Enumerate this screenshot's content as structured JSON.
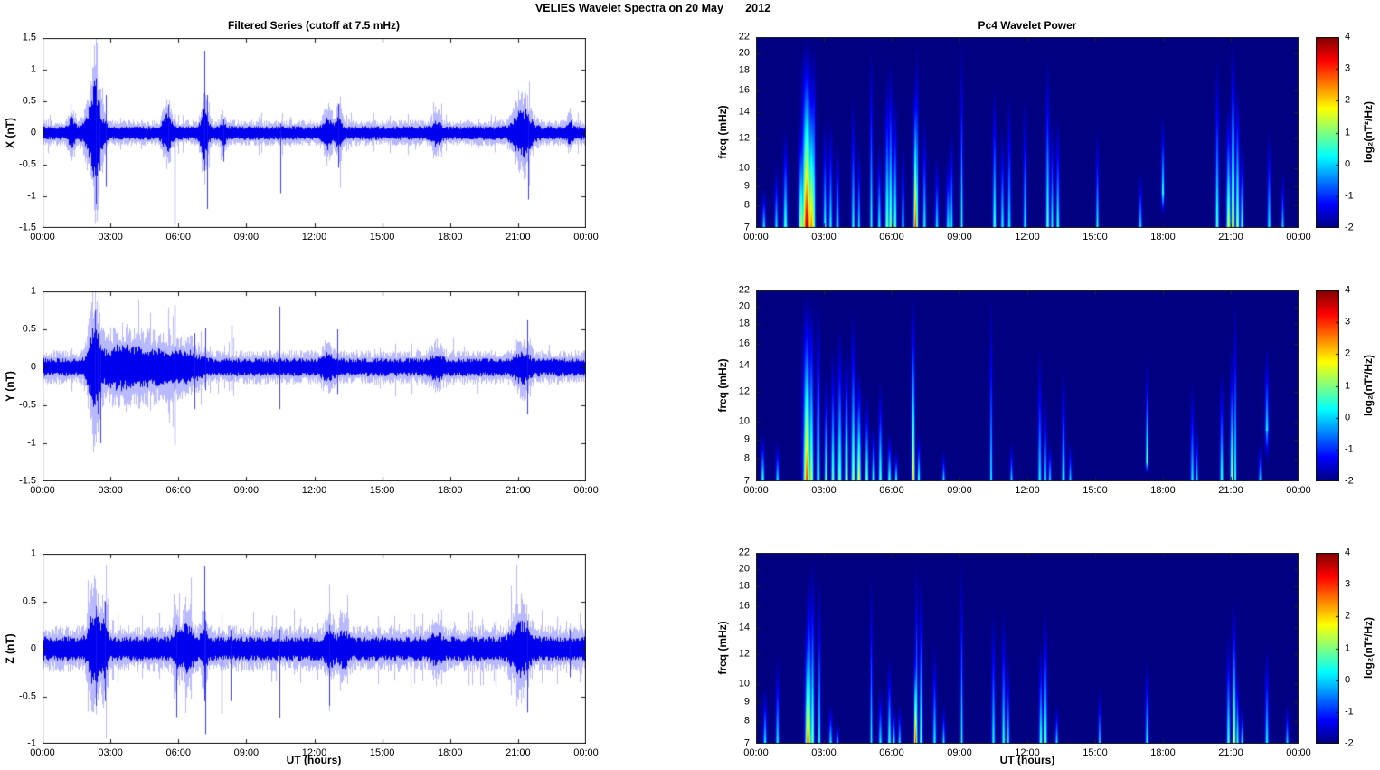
{
  "figure": {
    "title": "VELIES Wavelet Spectra on 20 May       2012"
  },
  "colors": {
    "background": "#ffffff",
    "line": "#0000ee",
    "line_fringe": "rgba(80,80,255,0.40)",
    "spike": "rgba(25,25,240,0.85)",
    "axis": "#1a1a1a",
    "spectro_bg": "#00008f"
  },
  "left_column": {
    "title": "Filtered Series (cutoff at 7.5 mHz)",
    "xlabel": "UT (hours)"
  },
  "right_column": {
    "title": "Pc4 Wavelet Power",
    "xlabel": "UT (hours)",
    "colorbar_label": "log₂(nT²/Hz)",
    "colorbar_ticks": [
      4,
      3,
      2,
      1,
      0,
      -1,
      -2
    ],
    "colorbar_range": [
      -2,
      4
    ]
  },
  "time_axis": {
    "range_hours": [
      0,
      24
    ],
    "ticks_hours": [
      0,
      3,
      6,
      9,
      12,
      15,
      18,
      21,
      24
    ],
    "tick_labels": [
      "00:00",
      "03:00",
      "06:00",
      "09:00",
      "12:00",
      "15:00",
      "18:00",
      "21:00",
      "00:00"
    ]
  },
  "chart_data": [
    {
      "type": "line",
      "panel": "timeseries-x",
      "ylabel": "X (nT)",
      "ylim": [
        -1.5,
        1.5
      ],
      "yticks": [
        1.5,
        1,
        0.5,
        0,
        -0.5,
        -1,
        -1.5
      ],
      "noise_base": 0.11,
      "seed": 101,
      "bursts": [
        [
          1.3,
          0.12,
          0.16
        ],
        [
          2.3,
          0.25,
          0.5
        ],
        [
          2.35,
          0.08,
          0.3
        ],
        [
          5.5,
          0.15,
          0.22
        ],
        [
          7.15,
          0.12,
          0.35
        ],
        [
          8.0,
          0.1,
          0.1
        ],
        [
          12.6,
          0.15,
          0.18
        ],
        [
          13.1,
          0.1,
          0.2
        ],
        [
          17.4,
          0.15,
          0.12
        ],
        [
          21.2,
          0.3,
          0.3
        ],
        [
          23.3,
          0.08,
          0.1
        ]
      ],
      "spikes": [
        [
          2.35,
          0.78,
          -1.12
        ],
        [
          2.5,
          0.5,
          -0.6
        ],
        [
          2.8,
          0.6,
          -0.85
        ],
        [
          5.55,
          0.45,
          -0.3
        ],
        [
          5.85,
          0.3,
          -1.45
        ],
        [
          7.15,
          1.3,
          -0.6
        ],
        [
          7.25,
          0.6,
          -1.2
        ],
        [
          8.0,
          0.2,
          -0.45
        ],
        [
          10.5,
          0.15,
          -0.95
        ],
        [
          13.05,
          0.45,
          -0.55
        ],
        [
          21.3,
          0.55,
          -0.5
        ],
        [
          21.45,
          0.3,
          -1.05
        ]
      ]
    },
    {
      "type": "line",
      "panel": "timeseries-y",
      "ylabel": "Y (nT)",
      "ylim": [
        -1.5,
        1
      ],
      "yticks": [
        1,
        0.5,
        0,
        -0.5,
        -1,
        -1.5
      ],
      "noise_base": 0.12,
      "seed": 202,
      "bursts": [
        [
          2.3,
          0.2,
          0.45
        ],
        [
          3.2,
          0.5,
          0.14
        ],
        [
          4.3,
          0.7,
          0.15
        ],
        [
          5.6,
          0.6,
          0.1
        ],
        [
          6.5,
          0.4,
          0.08
        ],
        [
          12.6,
          0.2,
          0.08
        ],
        [
          17.4,
          0.2,
          0.08
        ],
        [
          21.2,
          0.25,
          0.12
        ]
      ],
      "spikes": [
        [
          2.3,
          0.75,
          -0.5
        ],
        [
          2.45,
          0.4,
          -0.62
        ],
        [
          2.55,
          0.3,
          -1.0
        ],
        [
          5.85,
          0.82,
          -1.02
        ],
        [
          6.7,
          0.45,
          -0.55
        ],
        [
          7.2,
          0.52,
          -0.3
        ],
        [
          8.35,
          0.55,
          -0.3
        ],
        [
          10.45,
          0.8,
          -0.55
        ],
        [
          13.0,
          0.5,
          -0.35
        ],
        [
          21.4,
          0.62,
          -0.62
        ]
      ]
    },
    {
      "type": "line",
      "panel": "timeseries-z",
      "ylabel": "Z (nT)",
      "ylim": [
        -1,
        1
      ],
      "yticks": [
        1,
        0.5,
        0,
        -0.5,
        -1
      ],
      "noise_base": 0.13,
      "seed": 303,
      "bursts": [
        [
          2.3,
          0.2,
          0.3
        ],
        [
          2.75,
          0.1,
          0.2
        ],
        [
          5.9,
          0.1,
          0.12
        ],
        [
          6.4,
          0.2,
          0.15
        ],
        [
          7.15,
          0.1,
          0.15
        ],
        [
          12.7,
          0.15,
          0.1
        ],
        [
          13.3,
          0.15,
          0.12
        ],
        [
          17.4,
          0.15,
          0.08
        ],
        [
          21.1,
          0.3,
          0.18
        ]
      ],
      "spikes": [
        [
          2.35,
          0.45,
          -0.6
        ],
        [
          2.75,
          0.5,
          -0.55
        ],
        [
          5.9,
          0.25,
          -0.72
        ],
        [
          7.15,
          0.87,
          -0.55
        ],
        [
          7.2,
          0.3,
          -0.9
        ],
        [
          7.9,
          0.2,
          -0.68
        ],
        [
          8.3,
          0.2,
          -0.55
        ],
        [
          10.45,
          0.2,
          -0.73
        ],
        [
          12.65,
          0.25,
          -0.6
        ],
        [
          21.4,
          0.3,
          -0.67
        ],
        [
          23.3,
          0.2,
          -0.3
        ]
      ]
    },
    {
      "type": "heatmap",
      "panel": "wavelet-x",
      "ylabel": "freq (mHz)",
      "yscale": "log",
      "ylim": [
        7,
        22
      ],
      "yticks": [
        22,
        20,
        18,
        16,
        14,
        12,
        10,
        9,
        8,
        7
      ],
      "clim": [
        -2,
        4
      ],
      "colormap": "jet",
      "streaks": [
        [
          0.35,
          0.05,
          9,
          0.4
        ],
        [
          0.9,
          0.05,
          10.5,
          0.3
        ],
        [
          1.3,
          0.06,
          13,
          0.9
        ],
        [
          2.0,
          0.08,
          14,
          1.6
        ],
        [
          2.25,
          0.13,
          22,
          3.8
        ],
        [
          2.45,
          0.09,
          19,
          2.6
        ],
        [
          2.55,
          0.05,
          22,
          1.4
        ],
        [
          3.05,
          0.05,
          14,
          0.5
        ],
        [
          3.3,
          0.05,
          14,
          0.45
        ],
        [
          3.6,
          0.05,
          12,
          0.4
        ],
        [
          4.3,
          0.05,
          16,
          0.5
        ],
        [
          4.55,
          0.04,
          12,
          0.35
        ],
        [
          5.1,
          0.04,
          22,
          0.6
        ],
        [
          5.45,
          0.05,
          12,
          0.5
        ],
        [
          5.8,
          0.06,
          18,
          1.1
        ],
        [
          5.95,
          0.05,
          20,
          1.3
        ],
        [
          6.15,
          0.05,
          16,
          1.0
        ],
        [
          6.5,
          0.04,
          12,
          0.5
        ],
        [
          7.05,
          0.05,
          18,
          3.2
        ],
        [
          7.12,
          0.04,
          22,
          1.2
        ],
        [
          7.45,
          0.05,
          14,
          0.5
        ],
        [
          8.0,
          0.05,
          11,
          0.35
        ],
        [
          8.5,
          0.06,
          11,
          0.4
        ],
        [
          8.65,
          0.04,
          13,
          0.5
        ],
        [
          9.1,
          0.035,
          22,
          0.7
        ],
        [
          10.55,
          0.05,
          17,
          0.9
        ],
        [
          10.9,
          0.05,
          13,
          0.5
        ],
        [
          11.2,
          0.05,
          16,
          0.4
        ],
        [
          11.9,
          0.05,
          16,
          0.35
        ],
        [
          12.9,
          0.05,
          20,
          1.0
        ],
        [
          13.1,
          0.04,
          14,
          0.6
        ],
        [
          13.35,
          0.05,
          14,
          0.7
        ],
        [
          15.1,
          0.04,
          13,
          0.6
        ],
        [
          17.0,
          0.05,
          10,
          0.3
        ],
        [
          18.0,
          0.04,
          14,
          0.9,
          8.5
        ],
        [
          20.4,
          0.05,
          20,
          0.9
        ],
        [
          20.9,
          0.06,
          15,
          1.8
        ],
        [
          21.1,
          0.05,
          22,
          2.5
        ],
        [
          21.3,
          0.05,
          17,
          1.6
        ],
        [
          21.5,
          0.05,
          12,
          0.8
        ],
        [
          22.7,
          0.05,
          13,
          0.4
        ],
        [
          23.3,
          0.04,
          10,
          0.3
        ]
      ]
    },
    {
      "type": "heatmap",
      "panel": "wavelet-y",
      "ylabel": "freq (mHz)",
      "yscale": "log",
      "ylim": [
        7,
        22
      ],
      "yticks": [
        22,
        20,
        18,
        16,
        14,
        12,
        10,
        9,
        8,
        7
      ],
      "clim": [
        -2,
        4
      ],
      "colormap": "jet",
      "streaks": [
        [
          0.3,
          0.05,
          9.5,
          0.8
        ],
        [
          0.95,
          0.05,
          9,
          0.4
        ],
        [
          2.25,
          0.1,
          22,
          3.0
        ],
        [
          2.45,
          0.06,
          22,
          1.6
        ],
        [
          2.75,
          0.05,
          22,
          0.9
        ],
        [
          3.1,
          0.05,
          14,
          1.0
        ],
        [
          3.4,
          0.05,
          16,
          1.1
        ],
        [
          3.7,
          0.06,
          18,
          1.2
        ],
        [
          4.0,
          0.05,
          16,
          1.6
        ],
        [
          4.3,
          0.06,
          20,
          1.3
        ],
        [
          4.55,
          0.06,
          14,
          1.9
        ],
        [
          4.9,
          0.05,
          12,
          1.2
        ],
        [
          5.2,
          0.05,
          10,
          1.0
        ],
        [
          5.5,
          0.05,
          13,
          1.0
        ],
        [
          5.9,
          0.05,
          9.5,
          0.9
        ],
        [
          6.2,
          0.04,
          8.5,
          0.8
        ],
        [
          6.95,
          0.05,
          22,
          2.2
        ],
        [
          7.2,
          0.04,
          9.5,
          1.0
        ],
        [
          8.3,
          0.04,
          8.5,
          0.4
        ],
        [
          10.4,
          0.035,
          22,
          0.5
        ],
        [
          11.3,
          0.04,
          9,
          0.3
        ],
        [
          12.55,
          0.05,
          16,
          0.45
        ],
        [
          12.8,
          0.04,
          12,
          0.35
        ],
        [
          13.0,
          0.04,
          9,
          0.4
        ],
        [
          13.6,
          0.05,
          14,
          0.6
        ],
        [
          13.9,
          0.04,
          9,
          0.3
        ],
        [
          17.3,
          0.04,
          15,
          1.1,
          7.8
        ],
        [
          19.3,
          0.05,
          13,
          0.4
        ],
        [
          19.5,
          0.04,
          10,
          0.3
        ],
        [
          20.6,
          0.05,
          14,
          0.8
        ],
        [
          21.05,
          0.05,
          16,
          1.5
        ],
        [
          21.2,
          0.035,
          22,
          0.9
        ],
        [
          22.3,
          0.04,
          9,
          0.3
        ],
        [
          22.6,
          0.05,
          16,
          0.4,
          9.5
        ]
      ]
    },
    {
      "type": "heatmap",
      "panel": "wavelet-z",
      "ylabel": "freq (mHz)",
      "yscale": "log",
      "ylim": [
        7,
        22
      ],
      "yticks": [
        22,
        20,
        18,
        16,
        14,
        12,
        10,
        9,
        8,
        7
      ],
      "clim": [
        -2,
        4
      ],
      "colormap": "jet",
      "streaks": [
        [
          0.4,
          0.05,
          10,
          0.4
        ],
        [
          0.95,
          0.05,
          12,
          0.4
        ],
        [
          2.3,
          0.08,
          16,
          3.0
        ],
        [
          2.35,
          0.06,
          20,
          1.8
        ],
        [
          2.5,
          0.05,
          22,
          1.3
        ],
        [
          2.8,
          0.04,
          20,
          0.6
        ],
        [
          3.3,
          0.05,
          9,
          0.4
        ],
        [
          3.6,
          0.04,
          8,
          0.3
        ],
        [
          5.1,
          0.035,
          20,
          0.5
        ],
        [
          5.5,
          0.05,
          10,
          0.4
        ],
        [
          5.9,
          0.05,
          12,
          0.8
        ],
        [
          6.1,
          0.04,
          9,
          0.5
        ],
        [
          6.35,
          0.04,
          9,
          0.4
        ],
        [
          7.05,
          0.04,
          13,
          3.2
        ],
        [
          7.1,
          0.035,
          22,
          1.0
        ],
        [
          7.3,
          0.05,
          20,
          0.9
        ],
        [
          7.9,
          0.05,
          13,
          0.5
        ],
        [
          8.3,
          0.04,
          9,
          0.4
        ],
        [
          9.1,
          0.035,
          22,
          0.6
        ],
        [
          10.5,
          0.05,
          16,
          0.5
        ],
        [
          10.95,
          0.05,
          16,
          0.7
        ],
        [
          11.15,
          0.04,
          12,
          0.5
        ],
        [
          12.6,
          0.05,
          13,
          0.9
        ],
        [
          12.8,
          0.05,
          16,
          1.0
        ],
        [
          13.3,
          0.04,
          9,
          0.4
        ],
        [
          15.2,
          0.04,
          10,
          0.3
        ],
        [
          17.3,
          0.05,
          12,
          0.45
        ],
        [
          20.9,
          0.05,
          14,
          0.9
        ],
        [
          21.15,
          0.05,
          17,
          1.8
        ],
        [
          21.3,
          0.04,
          11,
          0.8
        ],
        [
          21.5,
          0.04,
          9,
          0.4
        ],
        [
          22.6,
          0.05,
          13,
          0.45
        ],
        [
          23.5,
          0.04,
          9,
          0.3
        ]
      ]
    }
  ]
}
